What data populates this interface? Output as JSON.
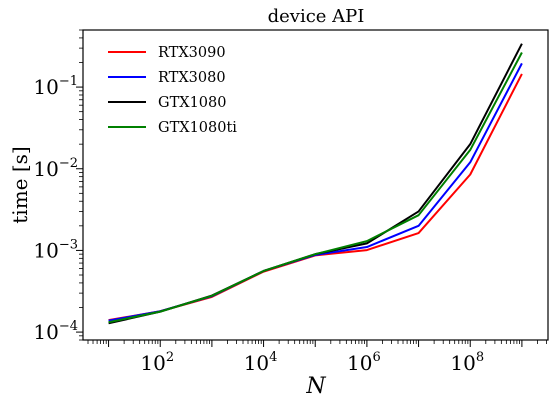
{
  "chart_data": {
    "type": "line",
    "title": "device API",
    "xlabel": "N",
    "ylabel": "time [s]",
    "xscale": "log",
    "yscale": "log",
    "xlim": [
      3.2,
      3200000000.0
    ],
    "ylim": [
      8e-05,
      0.5
    ],
    "grid": false,
    "legend_position": "top-left",
    "x": [
      10,
      100,
      1000,
      10000,
      100000,
      1000000,
      10000000,
      100000000,
      1000000000
    ],
    "x_tick_labels": [
      {
        "base": "10",
        "exp": "2",
        "value": 100
      },
      {
        "base": "10",
        "exp": "4",
        "value": 10000
      },
      {
        "base": "10",
        "exp": "6",
        "value": 1000000
      },
      {
        "base": "10",
        "exp": "8",
        "value": 100000000
      }
    ],
    "y_tick_labels": [
      {
        "base": "10",
        "exp": "−4",
        "value": 0.0001
      },
      {
        "base": "10",
        "exp": "−3",
        "value": 0.001
      },
      {
        "base": "10",
        "exp": "−2",
        "value": 0.01
      },
      {
        "base": "10",
        "exp": "−1",
        "value": 0.1
      }
    ],
    "series": [
      {
        "name": "RTX3090",
        "color": "#ff0000",
        "values": [
          0.00014,
          0.00018,
          0.00027,
          0.00055,
          0.00087,
          0.00101,
          0.00163,
          0.0085,
          0.145
        ]
      },
      {
        "name": "RTX3080",
        "color": "#0000ff",
        "values": [
          0.000138,
          0.00018,
          0.000275,
          0.00056,
          0.00088,
          0.0011,
          0.002,
          0.012,
          0.195
        ]
      },
      {
        "name": "GTX1080",
        "color": "#000000",
        "values": [
          0.000128,
          0.000178,
          0.00028,
          0.00056,
          0.0009,
          0.00122,
          0.003,
          0.02,
          0.34
        ]
      },
      {
        "name": "GTX1080ti",
        "color": "#008000",
        "values": [
          0.000132,
          0.000178,
          0.000278,
          0.00056,
          0.0009,
          0.0013,
          0.0027,
          0.017,
          0.265
        ]
      }
    ]
  }
}
